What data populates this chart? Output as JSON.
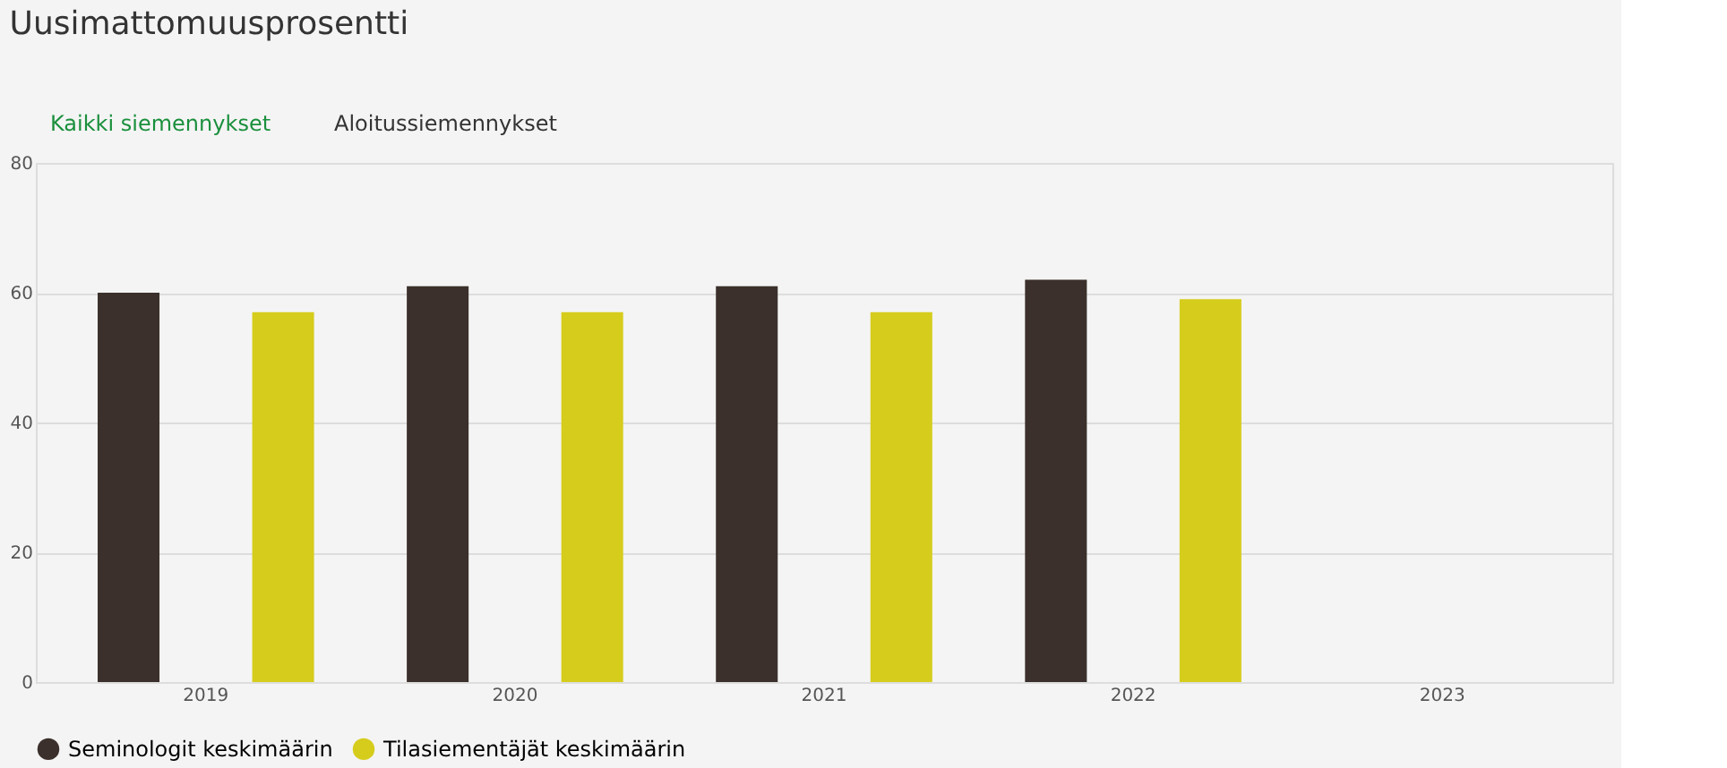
{
  "chart_data": {
    "type": "bar",
    "title": "Uusimattomuusprosentti",
    "annotations": [
      "Kaikki siemennykset",
      "Aloitussiemennykset"
    ],
    "categories": [
      "2019",
      "2020",
      "2021",
      "2022",
      "2023"
    ],
    "series": [
      {
        "name": "Seminologit keskimäärin",
        "color": "#3b302b",
        "values": [
          60,
          61,
          61,
          62,
          null
        ]
      },
      {
        "name": "Tilasiementäjät keskimäärin",
        "color": "#d6cc1c",
        "values": [
          57,
          57,
          57,
          59,
          null
        ]
      }
    ],
    "ylim": [
      0,
      80
    ],
    "yticks": [
      0,
      20,
      40,
      60,
      80
    ],
    "grid": "y",
    "legend": "bottom"
  }
}
